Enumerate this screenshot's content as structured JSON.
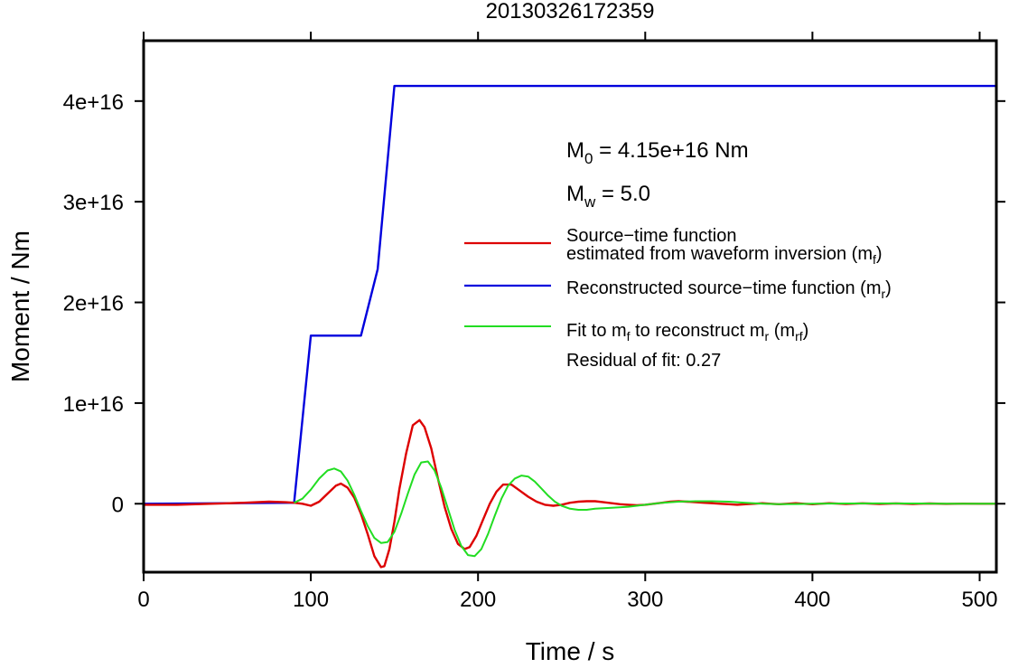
{
  "chart_data": {
    "type": "line",
    "title": "20130326172359",
    "xlabel": "Time / s",
    "ylabel": "Moment / Nm",
    "xlim": [
      0,
      510
    ],
    "ylim": [
      -6800000000000000.0,
      4.6e+16
    ],
    "grid": false,
    "legend_position": "right",
    "x_ticks": [
      0,
      100,
      200,
      300,
      400,
      500
    ],
    "x_tick_labels": [
      "0",
      "100",
      "200",
      "300",
      "400",
      "500"
    ],
    "y_ticks": [
      0,
      1e+16,
      2e+16,
      3e+16,
      4e+16
    ],
    "y_tick_labels": [
      "0",
      "1e+16",
      "2e+16",
      "3e+16",
      "4e+16"
    ],
    "annotations": {
      "m0": {
        "symbol": "M",
        "sub": "0",
        "text": " = 4.15e+16 Nm"
      },
      "mw": {
        "symbol": "M",
        "sub": "w",
        "text": " = 5.0"
      },
      "residual": "Residual of fit: 0.27"
    },
    "series": [
      {
        "key": "source_time",
        "name_line1": "Source−time function",
        "name_line2": "estimated from waveform inversion (m",
        "name_sub": "f",
        "name_end": ")",
        "color": "#dd0000",
        "x": [
          0,
          20,
          40,
          60,
          75,
          85,
          90,
          95,
          100,
          105,
          110,
          115,
          118,
          122,
          126,
          130,
          134,
          138,
          142,
          144,
          147,
          150,
          153,
          157,
          161,
          165,
          168,
          172,
          176,
          180,
          184,
          188,
          192,
          195,
          199,
          203,
          207,
          211,
          215,
          220,
          225,
          230,
          235,
          240,
          245,
          250,
          255,
          260,
          265,
          270,
          275,
          280,
          285,
          290,
          295,
          300,
          305,
          310,
          315,
          320,
          325,
          330,
          335,
          340,
          345,
          350,
          355,
          360,
          365,
          370,
          375,
          380,
          385,
          390,
          395,
          400,
          410,
          420,
          430,
          440,
          450,
          460,
          470,
          480,
          490,
          500,
          510
        ],
        "y": [
          -100000000000000.0,
          -100000000000000.0,
          0,
          100000000000000.0,
          200000000000000.0,
          150000000000000.0,
          100000000000000.0,
          0,
          -200000000000000.0,
          200000000000000.0,
          1000000000000000.0,
          1800000000000000.0,
          2000000000000000.0,
          1600000000000000.0,
          600000000000000.0,
          -1000000000000000.0,
          -3000000000000000.0,
          -5200000000000000.0,
          -6300000000000000.0,
          -6200000000000000.0,
          -4500000000000000.0,
          -1800000000000000.0,
          1500000000000000.0,
          5000000000000000.0,
          7800000000000000.0,
          8300000000000000.0,
          7600000000000000.0,
          5500000000000000.0,
          2500000000000000.0,
          -300000000000000.0,
          -2500000000000000.0,
          -4000000000000000.0,
          -4500000000000000.0,
          -4300000000000000.0,
          -3200000000000000.0,
          -1600000000000000.0,
          0,
          1200000000000000.0,
          1900000000000000.0,
          1900000000000000.0,
          1300000000000000.0,
          700000000000000.0,
          200000000000000.0,
          -100000000000000.0,
          -200000000000000.0,
          -100000000000000.0,
          100000000000000.0,
          200000000000000.0,
          250000000000000.0,
          250000000000000.0,
          150000000000000.0,
          50000000000000.0,
          -50000000000000.0,
          -100000000000000.0,
          -150000000000000.0,
          -100000000000000.0,
          0,
          100000000000000.0,
          200000000000000.0,
          250000000000000.0,
          200000000000000.0,
          150000000000000.0,
          100000000000000.0,
          50000000000000.0,
          0,
          -50000000000000.0,
          -100000000000000.0,
          -50000000000000.0,
          0,
          50000000000000.0,
          0,
          -50000000000000.0,
          0,
          50000000000000.0,
          0,
          -50000000000000.0,
          50000000000000.0,
          -30000000000000.0,
          40000000000000.0,
          -20000000000000.0,
          30000000000000.0,
          -20000000000000.0,
          20000000000000.0,
          -10000000000000.0,
          10000000000000.0,
          0,
          0
        ]
      },
      {
        "key": "reconstructed",
        "name": "Reconstructed source−time function (m",
        "name_sub": "r",
        "name_end": ")",
        "color": "#0000dd",
        "x": [
          0,
          90,
          100,
          130,
          140,
          150,
          510
        ],
        "y": [
          0,
          100000000000000.0,
          1.67e+16,
          1.67e+16,
          2.33e+16,
          4.15e+16,
          4.15e+16
        ]
      },
      {
        "key": "fit",
        "name_pre": "Fit to m",
        "name_pre_sub": "f",
        "name_mid": " to reconstruct m",
        "name_mid_sub": "r",
        "name_mid2": " (m",
        "name_sub": "rf",
        "name_end": ")",
        "color": "#22dd22",
        "x": [
          90,
          95,
          100,
          105,
          110,
          114,
          118,
          122,
          126,
          130,
          134,
          138,
          142,
          146,
          150,
          154,
          158,
          162,
          166,
          170,
          174,
          178,
          182,
          186,
          190,
          194,
          198,
          202,
          206,
          210,
          214,
          218,
          222,
          226,
          230,
          234,
          238,
          242,
          246,
          250,
          255,
          260,
          265,
          270,
          280,
          290,
          300,
          310,
          320,
          330,
          340,
          350,
          360,
          370,
          380,
          390,
          400,
          420,
          440,
          460,
          480,
          500,
          510
        ],
        "y": [
          100000000000000.0,
          500000000000000.0,
          1400000000000000.0,
          2500000000000000.0,
          3300000000000000.0,
          3500000000000000.0,
          3200000000000000.0,
          2300000000000000.0,
          900000000000000.0,
          -700000000000000.0,
          -2200000000000000.0,
          -3400000000000000.0,
          -3900000000000000.0,
          -3800000000000000.0,
          -2800000000000000.0,
          -1000000000000000.0,
          1000000000000000.0,
          2900000000000000.0,
          4100000000000000.0,
          4200000000000000.0,
          3300000000000000.0,
          1600000000000000.0,
          -500000000000000.0,
          -2600000000000000.0,
          -4200000000000000.0,
          -5100000000000000.0,
          -5200000000000000.0,
          -4500000000000000.0,
          -3000000000000000.0,
          -1200000000000000.0,
          500000000000000.0,
          1800000000000000.0,
          2500000000000000.0,
          2800000000000000.0,
          2700000000000000.0,
          2200000000000000.0,
          1500000000000000.0,
          800000000000000.0,
          200000000000000.0,
          -200000000000000.0,
          -500000000000000.0,
          -600000000000000.0,
          -600000000000000.0,
          -500000000000000.0,
          -400000000000000.0,
          -300000000000000.0,
          -100000000000000.0,
          100000000000000.0,
          200000000000000.0,
          250000000000000.0,
          250000000000000.0,
          200000000000000.0,
          100000000000000.0,
          0,
          -50000000000000.0,
          -30000000000000.0,
          0,
          20000000000000.0,
          30000000000000.0,
          20000000000000.0,
          10000000000000.0,
          0,
          0
        ]
      }
    ]
  }
}
